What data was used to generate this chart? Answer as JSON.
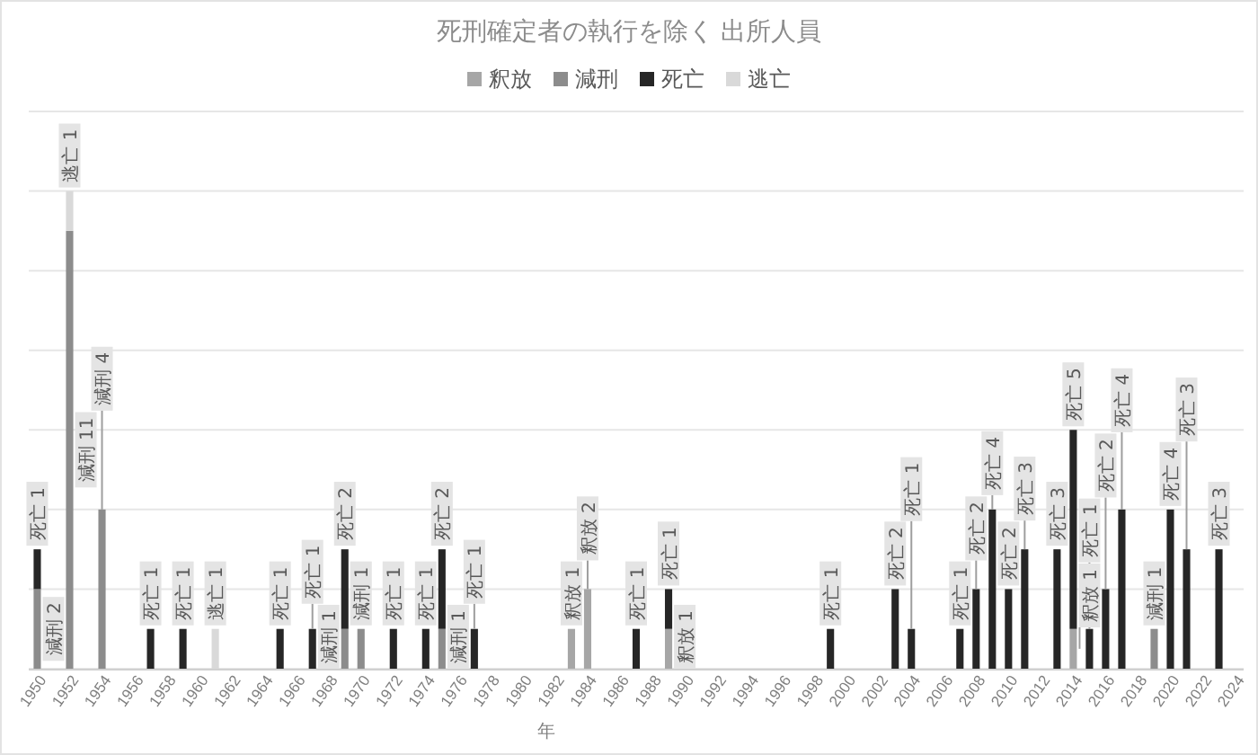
{
  "chart_data": {
    "type": "bar",
    "stacked": true,
    "title": "死刑確定者の執行を除く 出所人員",
    "xlabel": "年",
    "categories": [
      "1950",
      null,
      "1952",
      null,
      "1954",
      null,
      "1956",
      null,
      "1958",
      null,
      "1960",
      null,
      "1962",
      null,
      "1964",
      null,
      "1966",
      null,
      "1968",
      null,
      "1970",
      null,
      "1972",
      null,
      "1974",
      null,
      "1976",
      null,
      "1978",
      null,
      "1980",
      null,
      "1982",
      null,
      "1984",
      null,
      "1986",
      null,
      "1988",
      null,
      "1990",
      null,
      "1992",
      null,
      "1994",
      null,
      "1996",
      null,
      "1998",
      null,
      "2000",
      null,
      "2002",
      null,
      "2004",
      null,
      "2006",
      null,
      "2008",
      null,
      "2010",
      null,
      "2012",
      null,
      "2014",
      null,
      "2016",
      null,
      "2018",
      null,
      "2020",
      null,
      "2022",
      null,
      "2024"
    ],
    "series": [
      {
        "name": "釈放",
        "color": "#a6a6a6",
        "values": [
          null,
          null,
          null,
          null,
          null,
          null,
          null,
          null,
          null,
          null,
          null,
          null,
          null,
          null,
          null,
          null,
          null,
          null,
          null,
          null,
          null,
          null,
          null,
          null,
          null,
          null,
          null,
          null,
          null,
          null,
          null,
          null,
          null,
          1,
          2,
          null,
          null,
          null,
          null,
          1,
          null,
          null,
          null,
          null,
          null,
          null,
          null,
          null,
          null,
          null,
          null,
          null,
          null,
          null,
          null,
          null,
          null,
          null,
          null,
          null,
          null,
          null,
          null,
          null,
          1,
          null,
          null,
          null,
          null,
          null,
          null,
          null,
          null,
          null,
          null
        ],
        "value_labels": [
          null,
          null,
          null,
          null,
          null,
          null,
          null,
          null,
          null,
          null,
          null,
          null,
          null,
          null,
          null,
          null,
          null,
          null,
          null,
          null,
          null,
          null,
          null,
          null,
          null,
          null,
          null,
          null,
          null,
          null,
          null,
          null,
          null,
          "釈放 1",
          "釈放 2",
          null,
          null,
          null,
          null,
          "釈放 1",
          null,
          null,
          null,
          null,
          null,
          null,
          null,
          null,
          null,
          null,
          null,
          null,
          null,
          null,
          null,
          null,
          null,
          null,
          null,
          null,
          null,
          null,
          null,
          null,
          "釈放 1",
          null,
          null,
          null,
          null,
          null,
          null,
          null,
          null,
          null,
          null
        ]
      },
      {
        "name": "減刑",
        "color": "#8c8c8c",
        "values": [
          2,
          null,
          11,
          null,
          4,
          null,
          null,
          null,
          null,
          null,
          null,
          null,
          null,
          null,
          null,
          null,
          null,
          null,
          null,
          1,
          1,
          null,
          null,
          null,
          null,
          1,
          null,
          null,
          null,
          null,
          null,
          null,
          null,
          null,
          null,
          null,
          null,
          null,
          null,
          null,
          null,
          null,
          null,
          null,
          null,
          null,
          null,
          null,
          null,
          null,
          null,
          null,
          null,
          null,
          null,
          null,
          null,
          null,
          null,
          null,
          null,
          null,
          null,
          null,
          null,
          null,
          null,
          null,
          null,
          1,
          null,
          null,
          null,
          null,
          null
        ],
        "value_labels": [
          "減刑 2",
          null,
          "減刑 11",
          null,
          "減刑 4",
          null,
          null,
          null,
          null,
          null,
          null,
          null,
          null,
          null,
          null,
          null,
          null,
          null,
          null,
          "減刑 1",
          "減刑 1",
          null,
          null,
          null,
          null,
          "減刑 1",
          null,
          null,
          null,
          null,
          null,
          null,
          null,
          null,
          null,
          null,
          null,
          null,
          null,
          null,
          null,
          null,
          null,
          null,
          null,
          null,
          null,
          null,
          null,
          null,
          null,
          null,
          null,
          null,
          null,
          null,
          null,
          null,
          null,
          null,
          null,
          null,
          null,
          null,
          null,
          null,
          null,
          null,
          null,
          "減刑 1",
          null,
          null,
          null,
          null,
          null
        ]
      },
      {
        "name": "死亡",
        "color": "#262626",
        "values": [
          1,
          null,
          null,
          null,
          null,
          null,
          null,
          1,
          null,
          1,
          null,
          null,
          null,
          null,
          null,
          1,
          null,
          1,
          null,
          2,
          null,
          null,
          1,
          null,
          1,
          2,
          null,
          1,
          null,
          null,
          null,
          null,
          null,
          null,
          null,
          null,
          null,
          1,
          null,
          1,
          null,
          null,
          null,
          null,
          null,
          null,
          null,
          null,
          null,
          1,
          null,
          null,
          null,
          2,
          1,
          null,
          null,
          1,
          2,
          4,
          2,
          3,
          null,
          3,
          5,
          1,
          2,
          4,
          null,
          null,
          4,
          3,
          null,
          3,
          null
        ],
        "value_labels": [
          "死亡 1",
          null,
          null,
          null,
          null,
          null,
          null,
          "死亡 1",
          null,
          "死亡 1",
          null,
          null,
          null,
          null,
          null,
          "死亡 1",
          null,
          "死亡 1",
          null,
          "死亡 2",
          null,
          null,
          "死亡 1",
          null,
          "死亡 1",
          "死亡 2",
          null,
          "死亡 1",
          null,
          null,
          null,
          null,
          null,
          null,
          null,
          null,
          null,
          "死亡 1",
          null,
          "死亡 1",
          null,
          null,
          null,
          null,
          null,
          null,
          null,
          null,
          null,
          "死亡 1",
          null,
          null,
          null,
          "死亡 2",
          "死亡 1",
          null,
          null,
          "死亡 1",
          "死亡 2",
          "死亡 4",
          "死亡 2",
          "死亡 3",
          null,
          "死亡 3",
          "死亡 5",
          "死亡 1",
          "死亡 2",
          "死亡 4",
          null,
          null,
          "死亡 4",
          "死亡 3",
          null,
          "死亡 3",
          null
        ]
      },
      {
        "name": "逃亡",
        "color": "#d9d9d9",
        "values": [
          null,
          null,
          1,
          null,
          null,
          null,
          null,
          null,
          null,
          null,
          null,
          1,
          null,
          null,
          null,
          null,
          null,
          null,
          null,
          null,
          null,
          null,
          null,
          null,
          null,
          null,
          null,
          null,
          null,
          null,
          null,
          null,
          null,
          null,
          null,
          null,
          null,
          null,
          null,
          null,
          null,
          null,
          null,
          null,
          null,
          null,
          null,
          null,
          null,
          null,
          null,
          null,
          null,
          null,
          null,
          null,
          null,
          null,
          null,
          null,
          null,
          null,
          null,
          null,
          null,
          null,
          null,
          null,
          null,
          null,
          null,
          null,
          null,
          null,
          null
        ],
        "value_labels": [
          null,
          null,
          "逃亡 1",
          null,
          null,
          null,
          null,
          null,
          null,
          null,
          null,
          "逃亡 1",
          null,
          null,
          null,
          null,
          null,
          null,
          null,
          null,
          null,
          null,
          null,
          null,
          null,
          null,
          null,
          null,
          null,
          null,
          null,
          null,
          null,
          null,
          null,
          null,
          null,
          null,
          null,
          null,
          null,
          null,
          null,
          null,
          null,
          null,
          null,
          null,
          null,
          null,
          null,
          null,
          null,
          null,
          null,
          null,
          null,
          null,
          null,
          null,
          null,
          null,
          null,
          null,
          null,
          null,
          null,
          null,
          null,
          null,
          null,
          null,
          null,
          null,
          null
        ]
      }
    ],
    "ylim": [
      0,
      14
    ],
    "yticks": [
      {
        "value": 0,
        "label": null
      },
      {
        "value": 2,
        "label": null
      },
      {
        "value": 4,
        "label": null
      },
      {
        "value": 6,
        "label": null
      },
      {
        "value": 8,
        "label": null
      },
      {
        "value": 10,
        "label": null
      },
      {
        "value": 12,
        "label": null
      },
      {
        "value": 14,
        "label": null
      }
    ],
    "grid": "y",
    "legend": "top",
    "tick_labels": "x"
  }
}
